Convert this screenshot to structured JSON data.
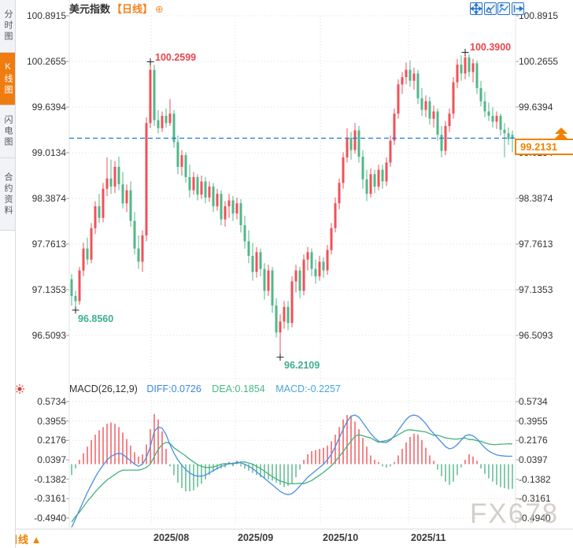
{
  "sidebar": {
    "tabs": [
      {
        "label": "分时图",
        "active": false
      },
      {
        "label": "K线图",
        "active": true
      },
      {
        "label": "闪电图",
        "active": false
      },
      {
        "label": "合约资料",
        "active": false
      }
    ]
  },
  "header": {
    "title": "美元指数",
    "period": "【日线】",
    "add_icon": "⊕"
  },
  "toolbar": {
    "buttons": [
      "pan",
      "zoom-in",
      "zoom-out",
      "jump-to-latest"
    ]
  },
  "price_axis": {
    "labels": [
      "100.8915",
      "100.2655",
      "99.6394",
      "99.0134",
      "98.3874",
      "97.7613",
      "97.1353",
      "96.5093"
    ]
  },
  "macd_axis": {
    "labels": [
      "0.5734",
      "0.3955",
      "0.2176",
      "0.0397",
      "-0.1382",
      "-0.3161",
      "-0.4940"
    ]
  },
  "macd_header": {
    "name": "MACD(26,12,9)",
    "diff": "DIFF:0.0726",
    "dea": "DEA:0.1854",
    "macd": "MACD:-0.2257"
  },
  "annotations": {
    "high1": "100.2599",
    "high2": "100.3900",
    "low1": "96.8560",
    "low2": "96.2109"
  },
  "last_price": {
    "value": "99.2131"
  },
  "footer": {
    "period_label": "日线 ▲",
    "dates": [
      "2025/08",
      "2025/09",
      "2025/10",
      "2025/11"
    ]
  },
  "watermark": "FX678",
  "colors": {
    "up": "#ef5158",
    "down": "#52b78a",
    "diff_line": "#4a8fe2",
    "dea_line": "#44b27c",
    "dashed_line": "#1a78e8",
    "accent": "#f08200",
    "annotation_up": "#e8464e",
    "annotation_down": "#3fae8f",
    "grid": "#dbdce2"
  },
  "chart_data": {
    "type": "candlestick+macd",
    "title": "美元指数 日线",
    "x_dates": [
      "2025/08",
      "2025/09",
      "2025/10",
      "2025/11"
    ],
    "month_x": [
      192,
      299,
      407,
      519
    ],
    "price_ticks": [
      100.8915,
      100.2655,
      99.6394,
      99.0134,
      98.3874,
      97.7613,
      97.1353,
      96.5093
    ],
    "macd_ticks": [
      0.5734,
      0.3955,
      0.2176,
      0.0397,
      -0.1382,
      -0.3161,
      -0.494
    ],
    "last_price": 99.2131,
    "high_max": 100.39,
    "low_min": 96.2109,
    "candles": [
      [
        97.28,
        97.35,
        96.92,
        97.05
      ],
      [
        97.05,
        97.12,
        96.856,
        96.98
      ],
      [
        96.98,
        97.45,
        96.93,
        97.4
      ],
      [
        97.4,
        97.78,
        97.32,
        97.7
      ],
      [
        97.7,
        97.85,
        97.48,
        97.55
      ],
      [
        97.55,
        98.05,
        97.5,
        97.98
      ],
      [
        97.98,
        98.35,
        97.9,
        98.28
      ],
      [
        98.28,
        98.45,
        98.05,
        98.12
      ],
      [
        98.12,
        98.6,
        98.06,
        98.52
      ],
      [
        98.52,
        98.95,
        98.42,
        98.66
      ],
      [
        98.66,
        98.92,
        98.45,
        98.55
      ],
      [
        98.55,
        98.9,
        98.46,
        98.82
      ],
      [
        98.82,
        98.96,
        98.5,
        98.58
      ],
      [
        98.58,
        98.75,
        98.25,
        98.32
      ],
      [
        98.32,
        98.58,
        98.2,
        98.5
      ],
      [
        98.5,
        98.62,
        98.0,
        98.08
      ],
      [
        98.08,
        98.2,
        97.62,
        97.7
      ],
      [
        97.7,
        97.88,
        97.42,
        97.52
      ],
      [
        97.52,
        97.95,
        97.38,
        97.88
      ],
      [
        97.88,
        99.5,
        97.8,
        99.42
      ],
      [
        99.42,
        100.2599,
        99.35,
        100.15
      ],
      [
        100.15,
        100.22,
        99.38,
        99.46
      ],
      [
        99.46,
        99.6,
        99.28,
        99.35
      ],
      [
        99.35,
        99.58,
        99.3,
        99.52
      ],
      [
        99.52,
        99.62,
        99.36,
        99.42
      ],
      [
        99.42,
        99.75,
        99.38,
        99.55
      ],
      [
        99.55,
        99.6,
        99.08,
        99.16
      ],
      [
        99.16,
        99.25,
        98.72,
        98.82
      ],
      [
        98.82,
        99.05,
        98.7,
        98.98
      ],
      [
        98.98,
        99.02,
        98.6,
        98.68
      ],
      [
        98.68,
        98.85,
        98.4,
        98.5
      ],
      [
        98.5,
        98.75,
        98.44,
        98.68
      ],
      [
        98.68,
        98.72,
        98.36,
        98.44
      ],
      [
        98.44,
        98.7,
        98.38,
        98.62
      ],
      [
        98.62,
        98.68,
        98.32,
        98.4
      ],
      [
        98.4,
        98.62,
        98.34,
        98.55
      ],
      [
        98.55,
        98.6,
        98.2,
        98.28
      ],
      [
        98.28,
        98.52,
        98.22,
        98.45
      ],
      [
        98.45,
        98.5,
        98.02,
        98.1
      ],
      [
        98.1,
        98.35,
        98.0,
        98.28
      ],
      [
        98.28,
        98.45,
        98.12,
        98.36
      ],
      [
        98.36,
        98.42,
        98.08,
        98.18
      ],
      [
        98.18,
        98.4,
        98.1,
        98.32
      ],
      [
        98.32,
        98.38,
        97.92,
        98.02
      ],
      [
        98.02,
        98.15,
        97.7,
        97.8
      ],
      [
        97.8,
        97.95,
        97.5,
        97.6
      ],
      [
        97.6,
        97.78,
        97.26,
        97.38
      ],
      [
        97.38,
        97.72,
        97.3,
        97.65
      ],
      [
        97.65,
        97.7,
        97.32,
        97.42
      ],
      [
        97.42,
        97.5,
        97.0,
        97.12
      ],
      [
        97.12,
        97.48,
        97.05,
        97.4
      ],
      [
        97.4,
        97.45,
        96.82,
        96.92
      ],
      [
        96.92,
        97.02,
        96.48,
        96.55
      ],
      [
        96.55,
        96.8,
        96.2109,
        96.7
      ],
      [
        96.7,
        96.98,
        96.6,
        96.9
      ],
      [
        96.9,
        96.98,
        96.58,
        96.68
      ],
      [
        96.68,
        97.32,
        96.62,
        97.25
      ],
      [
        97.25,
        97.48,
        97.1,
        97.4
      ],
      [
        97.4,
        97.45,
        97.02,
        97.12
      ],
      [
        97.12,
        97.62,
        97.06,
        97.55
      ],
      [
        97.55,
        97.72,
        97.4,
        97.65
      ],
      [
        97.65,
        97.7,
        97.32,
        97.42
      ],
      [
        97.42,
        97.55,
        97.22,
        97.32
      ],
      [
        97.32,
        97.6,
        97.26,
        97.52
      ],
      [
        97.52,
        97.58,
        97.3,
        97.4
      ],
      [
        97.4,
        97.75,
        97.34,
        97.68
      ],
      [
        97.68,
        98.05,
        97.62,
        97.98
      ],
      [
        97.98,
        98.4,
        97.92,
        98.32
      ],
      [
        98.32,
        98.66,
        98.24,
        98.6
      ],
      [
        98.6,
        99.02,
        98.52,
        98.95
      ],
      [
        98.95,
        99.35,
        98.88,
        99.22
      ],
      [
        99.22,
        99.3,
        98.92,
        99.05
      ],
      [
        99.05,
        99.42,
        99.0,
        99.32
      ],
      [
        99.32,
        99.38,
        98.88,
        98.96
      ],
      [
        98.96,
        99.05,
        98.52,
        98.65
      ],
      [
        98.65,
        98.78,
        98.35,
        98.45
      ],
      [
        98.45,
        98.8,
        98.4,
        98.72
      ],
      [
        98.72,
        98.78,
        98.46,
        98.55
      ],
      [
        98.55,
        98.85,
        98.5,
        98.78
      ],
      [
        98.78,
        98.85,
        98.52,
        98.62
      ],
      [
        98.62,
        98.95,
        98.56,
        98.88
      ],
      [
        98.88,
        99.25,
        98.82,
        99.18
      ],
      [
        99.18,
        99.62,
        99.12,
        99.55
      ],
      [
        99.55,
        100.02,
        99.48,
        99.95
      ],
      [
        99.95,
        100.12,
        99.82,
        100.05
      ],
      [
        100.05,
        100.25,
        99.95,
        100.15
      ],
      [
        100.15,
        100.28,
        99.92,
        100.0
      ],
      [
        100.0,
        100.18,
        99.88,
        100.1
      ],
      [
        100.1,
        100.15,
        99.68,
        99.76
      ],
      [
        99.76,
        99.9,
        99.52,
        99.6
      ],
      [
        99.6,
        99.8,
        99.5,
        99.72
      ],
      [
        99.72,
        99.78,
        99.4,
        99.48
      ],
      [
        99.48,
        99.66,
        99.36,
        99.58
      ],
      [
        99.58,
        99.62,
        99.18,
        99.26
      ],
      [
        99.26,
        99.38,
        98.95,
        99.04
      ],
      [
        99.04,
        99.45,
        98.98,
        99.38
      ],
      [
        99.38,
        99.62,
        99.3,
        99.55
      ],
      [
        99.55,
        100.05,
        99.48,
        99.98
      ],
      [
        99.98,
        100.3,
        99.9,
        100.22
      ],
      [
        100.22,
        100.35,
        100.0,
        100.1
      ],
      [
        100.1,
        100.39,
        100.02,
        100.32
      ],
      [
        100.32,
        100.36,
        100.05,
        100.12
      ],
      [
        100.12,
        100.3,
        99.98,
        100.24
      ],
      [
        100.24,
        100.28,
        99.82,
        99.9
      ],
      [
        99.9,
        100.0,
        99.65,
        99.72
      ],
      [
        99.72,
        99.85,
        99.5,
        99.58
      ],
      [
        99.58,
        99.7,
        99.45,
        99.52
      ],
      [
        99.52,
        99.64,
        99.36,
        99.44
      ],
      [
        99.44,
        99.58,
        99.34,
        99.52
      ],
      [
        99.52,
        99.55,
        99.25,
        99.33
      ],
      [
        99.33,
        99.42,
        98.95,
        99.28
      ],
      [
        99.28,
        99.36,
        99.12,
        99.2
      ],
      [
        99.26,
        99.32,
        99.02,
        99.2131
      ]
    ],
    "diff": [
      -0.58,
      -0.5,
      -0.42,
      -0.34,
      -0.26,
      -0.19,
      -0.12,
      -0.06,
      -0.01,
      0.04,
      0.07,
      0.09,
      0.1,
      0.09,
      0.06,
      0.03,
      0.0,
      -0.02,
      0.0,
      0.06,
      0.16,
      0.3,
      0.34,
      0.33,
      0.27,
      0.18,
      0.1,
      0.04,
      -0.01,
      -0.05,
      -0.08,
      -0.1,
      -0.11,
      -0.11,
      -0.1,
      -0.08,
      -0.06,
      -0.04,
      -0.02,
      -0.01,
      0.01,
      0.0,
      0.02,
      0.01,
      0.0,
      -0.02,
      -0.04,
      -0.07,
      -0.1,
      -0.13,
      -0.16,
      -0.19,
      -0.22,
      -0.25,
      -0.27,
      -0.28,
      -0.27,
      -0.24,
      -0.2,
      -0.16,
      -0.12,
      -0.09,
      -0.06,
      -0.03,
      0.0,
      0.04,
      0.09,
      0.16,
      0.24,
      0.32,
      0.39,
      0.44,
      0.45,
      0.43,
      0.38,
      0.33,
      0.28,
      0.24,
      0.21,
      0.2,
      0.2,
      0.22,
      0.26,
      0.31,
      0.36,
      0.41,
      0.44,
      0.45,
      0.44,
      0.41,
      0.37,
      0.32,
      0.28,
      0.24,
      0.2,
      0.16,
      0.14,
      0.15,
      0.18,
      0.22,
      0.26,
      0.27,
      0.26,
      0.23,
      0.19,
      0.15,
      0.12,
      0.1,
      0.085,
      0.078,
      0.074,
      0.072,
      0.0726
    ],
    "dea": [
      -0.53,
      -0.48,
      -0.44,
      -0.39,
      -0.34,
      -0.3,
      -0.255,
      -0.215,
      -0.18,
      -0.145,
      -0.12,
      -0.095,
      -0.07,
      -0.055,
      -0.055,
      -0.055,
      -0.055,
      -0.055,
      -0.045,
      -0.03,
      0.0,
      0.07,
      0.135,
      0.18,
      0.2,
      0.19,
      0.15,
      0.125,
      0.1,
      0.075,
      0.045,
      0.02,
      -0.005,
      -0.02,
      -0.03,
      -0.03,
      -0.025,
      -0.015,
      0.0,
      0.005,
      0.0,
      0.01,
      0.005,
      0.02,
      0.02,
      0.01,
      0.0,
      -0.02,
      -0.04,
      -0.065,
      -0.09,
      -0.115,
      -0.135,
      -0.155,
      -0.165,
      -0.18,
      -0.18,
      -0.18,
      -0.175,
      -0.18,
      -0.165,
      -0.15,
      -0.125,
      -0.1,
      -0.075,
      -0.045,
      -0.015,
      0.025,
      0.07,
      0.115,
      0.165,
      0.21,
      0.255,
      0.27,
      0.26,
      0.25,
      0.24,
      0.22,
      0.2,
      0.21,
      0.215,
      0.23,
      0.25,
      0.27,
      0.29,
      0.31,
      0.315,
      0.31,
      0.305,
      0.3,
      0.295,
      0.28,
      0.265,
      0.265,
      0.255,
      0.24,
      0.235,
      0.23,
      0.23,
      0.235,
      0.24,
      0.225,
      0.225,
      0.215,
      0.21,
      0.195,
      0.185,
      0.18,
      0.18,
      0.183,
      0.184,
      0.187,
      0.1854
    ],
    "macd": [
      -0.1,
      -0.04,
      0.04,
      0.1,
      0.16,
      0.22,
      0.27,
      0.31,
      0.34,
      0.37,
      0.38,
      0.37,
      0.34,
      0.29,
      0.23,
      0.17,
      0.11,
      0.07,
      0.09,
      0.18,
      0.32,
      0.46,
      0.41,
      0.3,
      0.14,
      -0.02,
      -0.1,
      -0.17,
      -0.22,
      -0.25,
      -0.25,
      -0.24,
      -0.21,
      -0.18,
      -0.14,
      -0.1,
      -0.07,
      -0.05,
      -0.04,
      -0.03,
      0.02,
      -0.02,
      0.03,
      -0.02,
      -0.04,
      -0.06,
      -0.08,
      -0.1,
      -0.12,
      -0.13,
      -0.14,
      -0.15,
      -0.17,
      -0.19,
      -0.21,
      -0.2,
      -0.18,
      -0.12,
      -0.05,
      0.04,
      0.09,
      0.12,
      0.13,
      0.14,
      0.15,
      0.17,
      0.21,
      0.27,
      0.34,
      0.41,
      0.45,
      0.44,
      0.39,
      0.32,
      0.24,
      0.16,
      0.08,
      0.04,
      0.02,
      -0.02,
      -0.03,
      -0.02,
      0.02,
      0.08,
      0.14,
      0.2,
      0.25,
      0.28,
      0.27,
      0.22,
      0.15,
      0.08,
      0.03,
      -0.05,
      -0.11,
      -0.16,
      -0.19,
      -0.16,
      -0.1,
      -0.03,
      0.04,
      0.09,
      0.07,
      0.03,
      -0.04,
      -0.09,
      -0.13,
      -0.16,
      -0.19,
      -0.21,
      -0.22,
      -0.23,
      -0.2257
    ],
    "markers": [
      {
        "i": 20,
        "p": 100.2599
      },
      {
        "i": 1,
        "p": 96.856
      },
      {
        "i": 53,
        "p": 96.2109
      },
      {
        "i": 100,
        "p": 100.39
      }
    ]
  }
}
